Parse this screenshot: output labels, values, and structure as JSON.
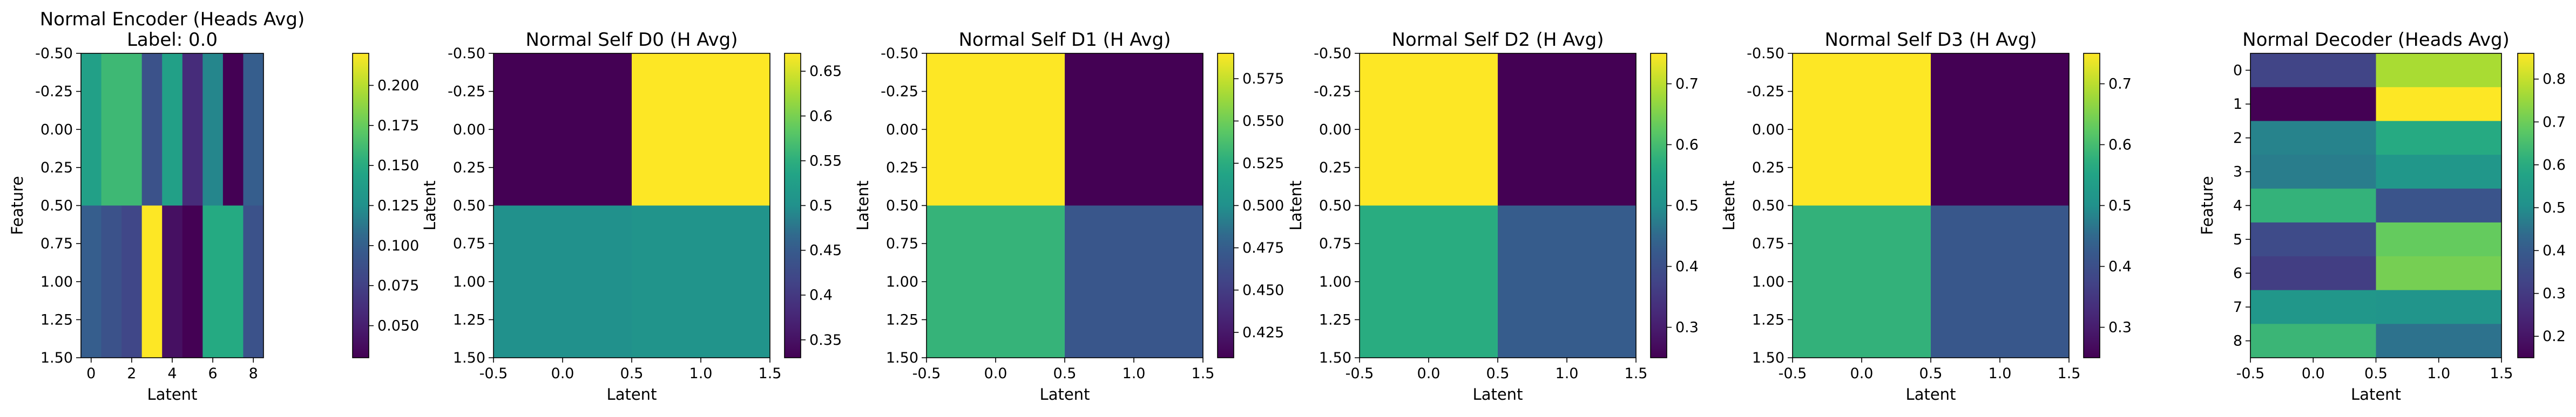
{
  "colormap": "viridis",
  "colors": {
    "axis": "#000000",
    "background": "#ffffff"
  },
  "chart_data": [
    {
      "type": "heatmap",
      "title": "Normal Encoder (Heads Avg)",
      "subtitle": "Label: 0.0",
      "xlabel": "Latent",
      "ylabel": "Feature",
      "xlim": [
        -0.5,
        8.5
      ],
      "ylim": [
        1.5,
        -0.5
      ],
      "xticks": [
        0,
        2,
        4,
        6,
        8
      ],
      "yticks": [
        -0.5,
        -0.25,
        0.0,
        0.25,
        0.5,
        0.75,
        1.0,
        1.25,
        1.5
      ],
      "colorbar": {
        "vmin": 0.03,
        "vmax": 0.22,
        "ticks": [
          0.05,
          0.075,
          0.1,
          0.125,
          0.15,
          0.175,
          0.2
        ]
      },
      "values": [
        [
          0.14,
          0.16,
          0.16,
          0.09,
          0.14,
          0.06,
          0.12,
          0.03,
          0.1
        ],
        [
          0.1,
          0.09,
          0.08,
          0.22,
          0.04,
          0.03,
          0.15,
          0.15,
          0.09
        ]
      ]
    },
    {
      "type": "heatmap",
      "title": "Normal Self D0 (H Avg)",
      "xlabel": "Latent",
      "ylabel": "Latent",
      "xlim": [
        -0.5,
        1.5
      ],
      "ylim": [
        1.5,
        -0.5
      ],
      "xticks": [
        -0.5,
        0.0,
        0.5,
        1.0,
        1.5
      ],
      "yticks": [
        -0.5,
        -0.25,
        0.0,
        0.25,
        0.5,
        0.75,
        1.0,
        1.25,
        1.5
      ],
      "colorbar": {
        "vmin": 0.33,
        "vmax": 0.67,
        "ticks": [
          0.35,
          0.4,
          0.45,
          0.5,
          0.55,
          0.6,
          0.65
        ]
      },
      "values": [
        [
          0.33,
          0.67
        ],
        [
          0.5,
          0.505
        ]
      ]
    },
    {
      "type": "heatmap",
      "title": "Normal Self D1 (H Avg)",
      "xlabel": "Latent",
      "ylabel": "Latent",
      "xlim": [
        -0.5,
        1.5
      ],
      "ylim": [
        1.5,
        -0.5
      ],
      "xticks": [
        -0.5,
        0.0,
        0.5,
        1.0,
        1.5
      ],
      "yticks": [
        -0.5,
        -0.25,
        0.0,
        0.25,
        0.5,
        0.75,
        1.0,
        1.25,
        1.5
      ],
      "colorbar": {
        "vmin": 0.41,
        "vmax": 0.59,
        "ticks": [
          0.425,
          0.45,
          0.475,
          0.5,
          0.525,
          0.55,
          0.575
        ]
      },
      "values": [
        [
          0.59,
          0.41
        ],
        [
          0.53,
          0.47
        ]
      ]
    },
    {
      "type": "heatmap",
      "title": "Normal Self D2 (H Avg)",
      "xlabel": "Latent",
      "ylabel": "Latent",
      "xlim": [
        -0.5,
        1.5
      ],
      "ylim": [
        1.5,
        -0.5
      ],
      "xticks": [
        -0.5,
        0.0,
        0.5,
        1.0,
        1.5
      ],
      "yticks": [
        -0.5,
        -0.25,
        0.0,
        0.25,
        0.5,
        0.75,
        1.0,
        1.25,
        1.5
      ],
      "colorbar": {
        "vmin": 0.25,
        "vmax": 0.75,
        "ticks": [
          0.3,
          0.4,
          0.5,
          0.6,
          0.7
        ]
      },
      "values": [
        [
          0.75,
          0.25
        ],
        [
          0.57,
          0.43
        ]
      ]
    },
    {
      "type": "heatmap",
      "title": "Normal Self D3 (H Avg)",
      "xlabel": "Latent",
      "ylabel": "Latent",
      "xlim": [
        -0.5,
        1.5
      ],
      "ylim": [
        1.5,
        -0.5
      ],
      "xticks": [
        -0.5,
        0.0,
        0.5,
        1.0,
        1.5
      ],
      "yticks": [
        -0.5,
        -0.25,
        0.0,
        0.25,
        0.5,
        0.75,
        1.0,
        1.25,
        1.5
      ],
      "colorbar": {
        "vmin": 0.25,
        "vmax": 0.75,
        "ticks": [
          0.3,
          0.4,
          0.5,
          0.6,
          0.7
        ]
      },
      "values": [
        [
          0.75,
          0.25
        ],
        [
          0.58,
          0.42
        ]
      ]
    },
    {
      "type": "heatmap",
      "title": "Normal Decoder (Heads Avg)",
      "xlabel": "Latent",
      "ylabel": "Feature",
      "xlim": [
        -0.5,
        1.5
      ],
      "ylim": [
        8.5,
        -0.5
      ],
      "xticks": [
        -0.5,
        0.0,
        0.5,
        1.0,
        1.5
      ],
      "yticks": [
        0,
        1,
        2,
        3,
        4,
        5,
        6,
        7,
        8
      ],
      "colorbar": {
        "vmin": 0.15,
        "vmax": 0.86,
        "ticks": [
          0.2,
          0.3,
          0.4,
          0.5,
          0.6,
          0.7,
          0.8
        ]
      },
      "values": [
        [
          0.33,
          0.77
        ],
        [
          0.15,
          0.86
        ],
        [
          0.48,
          0.6
        ],
        [
          0.47,
          0.53
        ],
        [
          0.62,
          0.38
        ],
        [
          0.35,
          0.69
        ],
        [
          0.31,
          0.71
        ],
        [
          0.53,
          0.52
        ],
        [
          0.63,
          0.45
        ]
      ]
    }
  ]
}
